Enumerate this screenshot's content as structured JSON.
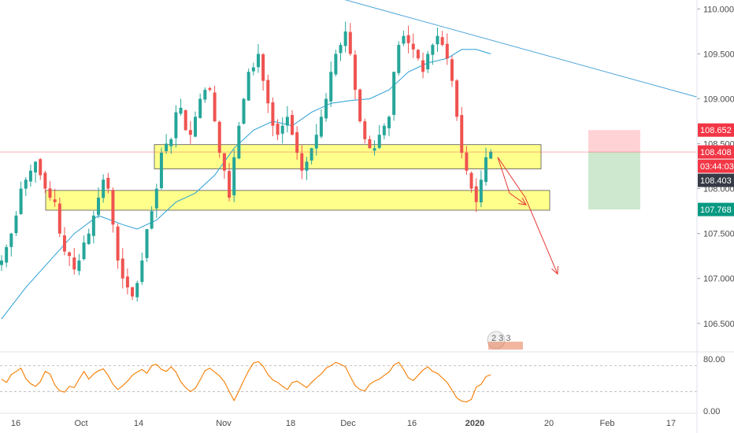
{
  "chart_data": {
    "type": "candlestick",
    "price_axis": {
      "ticks": [
        "110.000",
        "109.500",
        "109.000",
        "108.500",
        "108.000",
        "107.500",
        "107.000",
        "106.500"
      ],
      "tick_values": [
        110.0,
        109.5,
        109.0,
        108.5,
        108.0,
        107.5,
        107.0,
        106.5
      ],
      "range": [
        106.2,
        110.1
      ]
    },
    "time_axis": {
      "labels": [
        {
          "text": "16",
          "bold": false
        },
        {
          "text": "Oct",
          "bold": false
        },
        {
          "text": "14",
          "bold": false
        },
        {
          "text": "Nov",
          "bold": false
        },
        {
          "text": "18",
          "bold": false
        },
        {
          "text": "Dec",
          "bold": false
        },
        {
          "text": "16",
          "bold": false
        },
        {
          "text": "2020",
          "bold": true
        },
        {
          "text": "20",
          "bold": false
        },
        {
          "text": "Feb",
          "bold": false
        },
        {
          "text": "17",
          "bold": false
        }
      ]
    },
    "price_tags": [
      {
        "text": "108.652",
        "value": 108.652,
        "color": "#f23645"
      },
      {
        "text": "108.408",
        "value": 108.408,
        "color": "#f23645"
      },
      {
        "text": "03:44:03",
        "value": null,
        "color": "#f23645"
      },
      {
        "text": "108.403",
        "value": 108.403,
        "color": "#363a45"
      },
      {
        "text": "107.768",
        "value": 107.768,
        "color": "#089981"
      }
    ],
    "last_price": 108.408,
    "trade_box": {
      "entry": 108.408,
      "stop": 108.652,
      "target": 107.768,
      "loss_color": "#ffcdd2",
      "profit_color": "#c8e6c9"
    },
    "zones": [
      {
        "top": 108.49,
        "bottom": 108.22,
        "color": "#ffff66"
      },
      {
        "top": 107.98,
        "bottom": 107.76,
        "color": "#ffff66"
      }
    ],
    "candle_colors": {
      "up": "#26a69a",
      "down": "#ef5350"
    },
    "closes": [
      107.2,
      107.35,
      107.5,
      107.7,
      108.0,
      108.1,
      108.2,
      108.3,
      108.15,
      108.0,
      107.9,
      107.85,
      107.5,
      107.3,
      107.25,
      107.1,
      107.2,
      107.4,
      107.5,
      107.7,
      107.9,
      108.1,
      108.0,
      107.6,
      107.2,
      107.0,
      106.9,
      106.8,
      106.95,
      107.2,
      107.55,
      107.75,
      108.0,
      108.4,
      108.5,
      108.55,
      108.85,
      108.9,
      108.65,
      108.6,
      108.8,
      109.0,
      109.1,
      109.1,
      108.75,
      108.4,
      108.2,
      107.9,
      108.35,
      108.7,
      109.0,
      109.3,
      109.35,
      109.5,
      109.2,
      108.95,
      108.7,
      108.6,
      108.7,
      108.8,
      108.6,
      108.4,
      108.2,
      108.3,
      108.45,
      108.6,
      108.8,
      109.0,
      109.3,
      109.5,
      109.6,
      109.75,
      109.5,
      109.1,
      108.75,
      108.55,
      108.45,
      108.45,
      108.6,
      108.7,
      108.8,
      109.3,
      109.6,
      109.7,
      109.62,
      109.55,
      109.45,
      109.3,
      109.5,
      109.6,
      109.7,
      109.6,
      109.45,
      109.2,
      108.8,
      108.4,
      108.2,
      108.0,
      107.85,
      108.1,
      108.35,
      108.41
    ],
    "moving_average": [
      {
        "x": 0,
        "y": 106.55
      },
      {
        "x": 5,
        "y": 106.9
      },
      {
        "x": 10,
        "y": 107.2
      },
      {
        "x": 15,
        "y": 107.5
      },
      {
        "x": 20,
        "y": 107.7
      },
      {
        "x": 25,
        "y": 107.6
      },
      {
        "x": 28,
        "y": 107.55
      },
      {
        "x": 32,
        "y": 107.65
      },
      {
        "x": 36,
        "y": 107.85
      },
      {
        "x": 40,
        "y": 107.95
      },
      {
        "x": 44,
        "y": 108.15
      },
      {
        "x": 48,
        "y": 108.45
      },
      {
        "x": 52,
        "y": 108.65
      },
      {
        "x": 56,
        "y": 108.75
      },
      {
        "x": 60,
        "y": 108.7
      },
      {
        "x": 64,
        "y": 108.85
      },
      {
        "x": 68,
        "y": 108.95
      },
      {
        "x": 72,
        "y": 108.98
      },
      {
        "x": 76,
        "y": 109.0
      },
      {
        "x": 80,
        "y": 109.1
      },
      {
        "x": 84,
        "y": 109.3
      },
      {
        "x": 88,
        "y": 109.4
      },
      {
        "x": 92,
        "y": 109.45
      },
      {
        "x": 95,
        "y": 109.55
      },
      {
        "x": 98,
        "y": 109.55
      },
      {
        "x": 101,
        "y": 109.5
      }
    ],
    "trendline": {
      "from": 110.35,
      "to": 109.02
    },
    "forecast_arrows": [
      {
        "points": [
          108.35,
          107.95,
          107.82
        ]
      },
      {
        "points": [
          108.35,
          107.9,
          107.05
        ]
      }
    ],
    "rsi": {
      "ticks": [
        "80.00",
        "0.00"
      ],
      "tick_values": [
        80,
        0
      ],
      "bands": [
        70,
        30
      ],
      "color": "#f57c00",
      "values": [
        49,
        44,
        56,
        61,
        66,
        50,
        42,
        38,
        45,
        61,
        57,
        40,
        31,
        29,
        38,
        36,
        49,
        61,
        49,
        57,
        62,
        65,
        55,
        41,
        33,
        39,
        46,
        55,
        60,
        64,
        58,
        70,
        72,
        64,
        61,
        68,
        60,
        45,
        36,
        30,
        35,
        48,
        62,
        66,
        60,
        54,
        45,
        30,
        16,
        31,
        47,
        62,
        74,
        76,
        69,
        56,
        48,
        44,
        38,
        33,
        44,
        46,
        41,
        36,
        44,
        51,
        57,
        66,
        70,
        75,
        72,
        68,
        53,
        39,
        33,
        31,
        41,
        46,
        49,
        55,
        60,
        71,
        75,
        64,
        51,
        47,
        55,
        63,
        68,
        61,
        58,
        51,
        44,
        32,
        20,
        15,
        14,
        18,
        37,
        41,
        53,
        56
      ]
    },
    "watermark": "2 3 3"
  }
}
